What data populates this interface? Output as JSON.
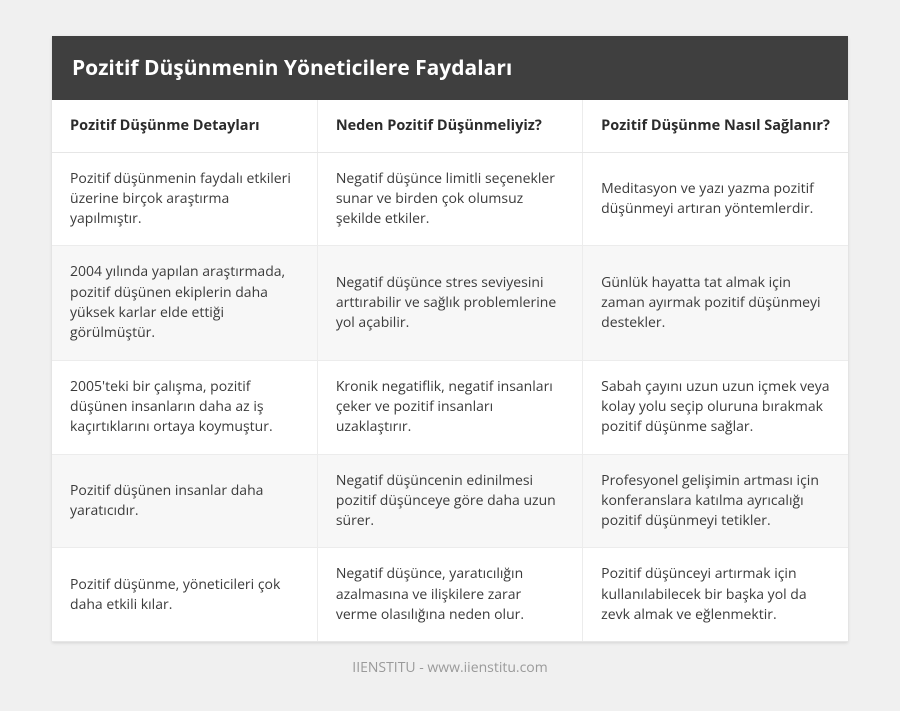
{
  "title": "Pozitif Düşünmenin Yöneticilere Faydaları",
  "columns": [
    "Pozitif Düşünme Detayları",
    "Neden Pozitif Düşünmeliyiz?",
    "Pozitif Düşünme Nasıl Sağlanır?"
  ],
  "rows": [
    [
      "Pozitif düşünmenin faydalı etkileri üzerine birçok araştırma yapılmıştır.",
      "Negatif düşünce limitli seçenekler sunar ve birden çok olumsuz şekilde etkiler.",
      "Meditasyon ve yazı yazma pozitif düşünmeyi artıran yöntemlerdir."
    ],
    [
      "2004 yılında yapılan araştırmada, pozitif düşünen ekiplerin daha yüksek karlar elde ettiği görülmüştür.",
      "Negatif düşünce stres seviyesini arttırabilir ve sağlık problemlerine yol açabilir.",
      "Günlük hayatta tat almak için zaman ayırmak pozitif düşünmeyi destekler."
    ],
    [
      "2005'teki bir çalışma, pozitif düşünen insanların daha az iş kaçırtıklarını ortaya koymuştur.",
      "Kronik negatiflik, negatif insanları çeker ve pozitif insanları uzaklaştırır.",
      "Sabah çayını uzun uzun içmek veya kolay yolu seçip oluruna bırakmak pozitif düşünme sağlar."
    ],
    [
      "Pozitif düşünen insanlar daha yaratıcıdır.",
      "Negatif düşüncenin edinilmesi pozitif düşünceye göre daha uzun sürer.",
      "Profesyonel gelişimin artması için konferanslara katılma ayrıcalığı pozitif düşünmeyi tetikler."
    ],
    [
      "Pozitif düşünme, yöneticileri çok daha etkili kılar.",
      "Negatif düşünce, yaratıcılığın azalmasına ve ilişkilere zarar verme olasılığına neden olur.",
      "Pozitif düşünceyi artırmak için kullanılabilecek bir başka yol da zevk almak ve eğlenmektir."
    ]
  ],
  "footer": "IIENSTITU - www.iienstitu.com",
  "style": {
    "page_bg": "#f0f0f0",
    "card_bg": "#ffffff",
    "titlebar_bg": "#3f3f3f",
    "titlebar_color": "#ffffff",
    "row_alt_bg": "#f7f7f7",
    "border_color": "#ececec",
    "text_color": "#3a3a3a",
    "footer_color": "#9a9a9a",
    "title_fontsize": 21,
    "header_fontsize": 14.5,
    "cell_fontsize": 14,
    "column_count": 3
  }
}
